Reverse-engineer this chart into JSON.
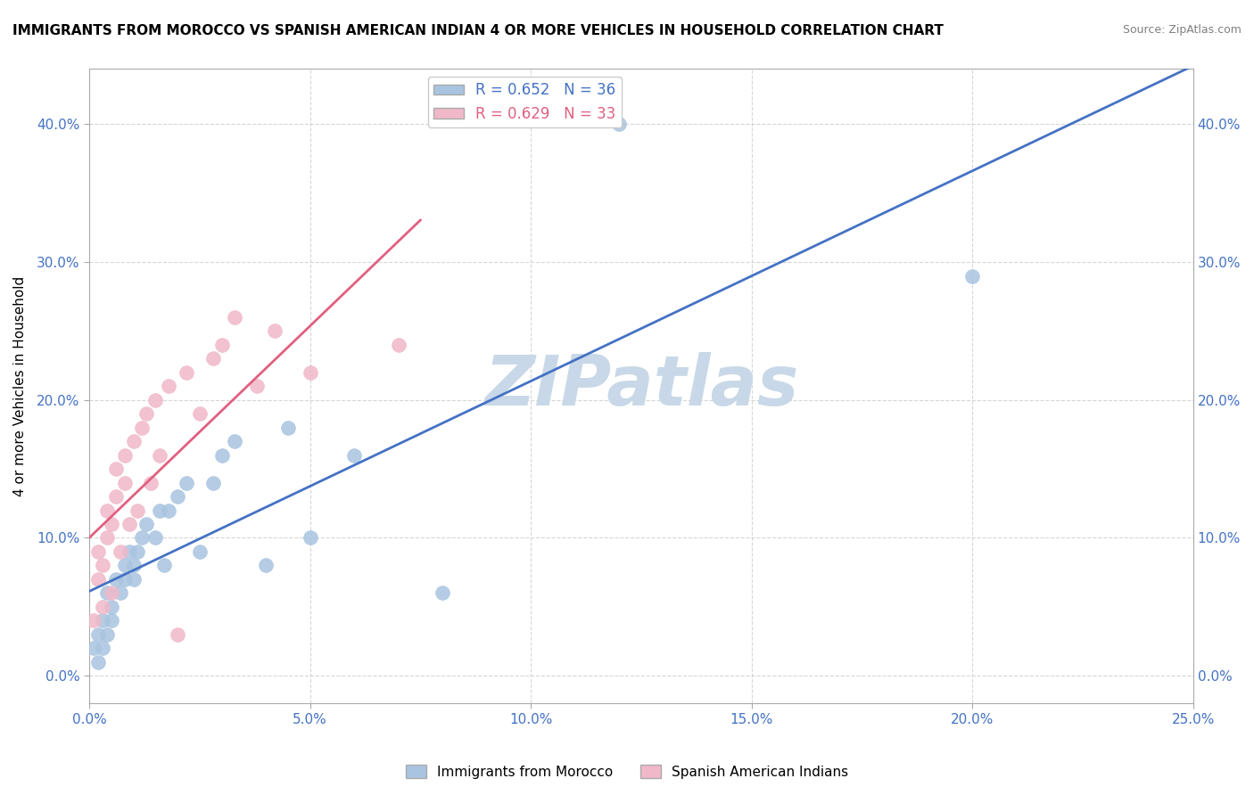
{
  "title": "IMMIGRANTS FROM MOROCCO VS SPANISH AMERICAN INDIAN 4 OR MORE VEHICLES IN HOUSEHOLD CORRELATION CHART",
  "source": "Source: ZipAtlas.com",
  "ylabel": "4 or more Vehicles in Household",
  "ytick_labels": [
    "0.0%",
    "10.0%",
    "20.0%",
    "30.0%",
    "40.0%"
  ],
  "ytick_values": [
    0.0,
    0.1,
    0.2,
    0.3,
    0.4
  ],
  "xlim": [
    0.0,
    0.25
  ],
  "ylim": [
    -0.02,
    0.44
  ],
  "legend_r1": "R = 0.652",
  "legend_n1": "N = 36",
  "legend_r2": "R = 0.629",
  "legend_n2": "N = 33",
  "legend_label1": "Immigrants from Morocco",
  "legend_label2": "Spanish American Indians",
  "color_morocco": "#a8c4e0",
  "color_spanish": "#f0b8c8",
  "color_morocco_line": "#4472c4",
  "color_spanish_line": "#e06080",
  "watermark_color": "#c8d8e8",
  "morocco_x": [
    0.001,
    0.002,
    0.002,
    0.003,
    0.003,
    0.004,
    0.004,
    0.005,
    0.005,
    0.006,
    0.007,
    0.008,
    0.008,
    0.009,
    0.01,
    0.01,
    0.011,
    0.012,
    0.013,
    0.015,
    0.016,
    0.017,
    0.018,
    0.02,
    0.022,
    0.025,
    0.028,
    0.03,
    0.033,
    0.04,
    0.045,
    0.05,
    0.06,
    0.08,
    0.12,
    0.2
  ],
  "morocco_y": [
    0.02,
    0.01,
    0.03,
    0.02,
    0.04,
    0.03,
    0.06,
    0.04,
    0.05,
    0.07,
    0.06,
    0.08,
    0.07,
    0.09,
    0.07,
    0.08,
    0.09,
    0.1,
    0.11,
    0.1,
    0.12,
    0.08,
    0.12,
    0.13,
    0.14,
    0.09,
    0.14,
    0.16,
    0.17,
    0.08,
    0.18,
    0.1,
    0.16,
    0.06,
    0.4,
    0.29
  ],
  "spanish_x": [
    0.001,
    0.002,
    0.002,
    0.003,
    0.003,
    0.004,
    0.004,
    0.005,
    0.005,
    0.006,
    0.006,
    0.007,
    0.008,
    0.008,
    0.009,
    0.01,
    0.011,
    0.012,
    0.013,
    0.014,
    0.015,
    0.016,
    0.018,
    0.02,
    0.022,
    0.025,
    0.028,
    0.03,
    0.033,
    0.038,
    0.042,
    0.05,
    0.07
  ],
  "spanish_y": [
    0.04,
    0.07,
    0.09,
    0.05,
    0.08,
    0.1,
    0.12,
    0.06,
    0.11,
    0.13,
    0.15,
    0.09,
    0.14,
    0.16,
    0.11,
    0.17,
    0.12,
    0.18,
    0.19,
    0.14,
    0.2,
    0.16,
    0.21,
    0.03,
    0.22,
    0.19,
    0.23,
    0.24,
    0.26,
    0.21,
    0.25,
    0.22,
    0.24
  ]
}
